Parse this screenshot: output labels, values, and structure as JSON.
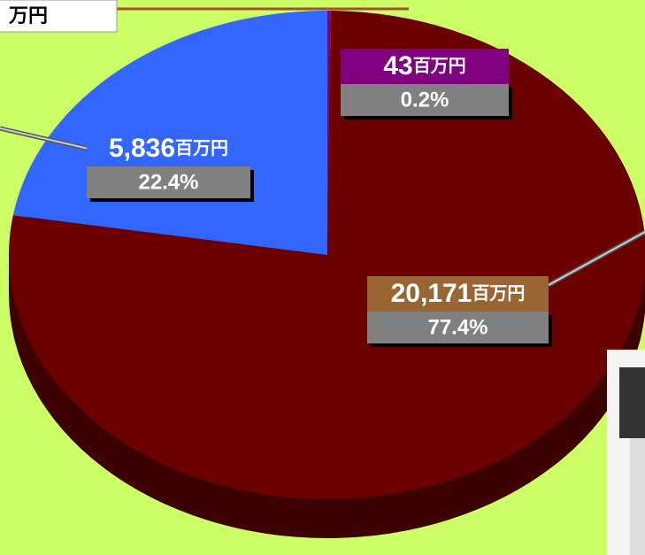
{
  "chart_data": {
    "type": "pie",
    "unit_note": "万円",
    "categories": [
      null,
      null,
      null
    ],
    "values": [
      43,
      20171,
      5836
    ],
    "value_labels": [
      "43",
      "20,171",
      "5,836"
    ],
    "unit": "百万円",
    "percent_labels": [
      "0.2%",
      "77.4%",
      "22.4%"
    ],
    "colors": [
      "#800080",
      "#6b0000",
      "#3366ff"
    ],
    "label_colors": [
      "#800080",
      "#996633",
      "#3366ff"
    ]
  }
}
